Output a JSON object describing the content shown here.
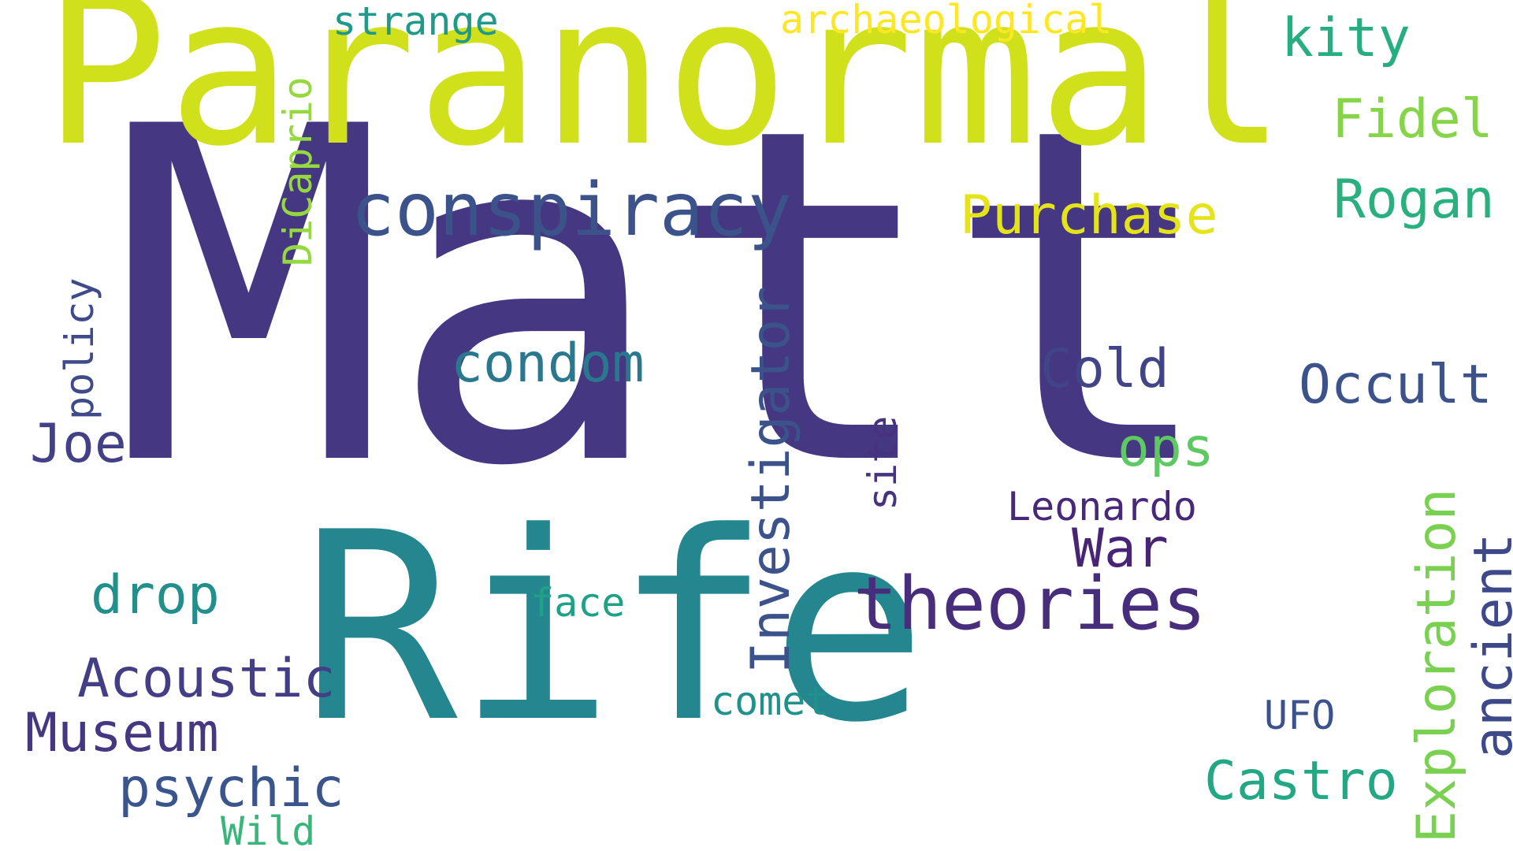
{
  "words": [
    {
      "text": "Matt",
      "color": "#453781"
    },
    {
      "text": "Paranormal",
      "color": "#d0e11c"
    },
    {
      "text": "Rife",
      "color": "#24868e"
    },
    {
      "text": "conspiracy",
      "color": "#3b528b"
    },
    {
      "text": "theories",
      "color": "#472d7b"
    },
    {
      "text": "Investigator",
      "color": "#3b528b"
    },
    {
      "text": "Exploration",
      "color": "#7ad151"
    },
    {
      "text": "Acoustic",
      "color": "#433e85"
    },
    {
      "text": "Museum",
      "color": "#453781"
    },
    {
      "text": "psychic",
      "color": "#39558c"
    },
    {
      "text": "Castro",
      "color": "#22a884"
    },
    {
      "text": "Occult",
      "color": "#3b528b"
    },
    {
      "text": "Purchase",
      "color": "#e5e419"
    },
    {
      "text": "Rogan",
      "color": "#2ab07f"
    },
    {
      "text": "condom",
      "color": "#2a788e"
    },
    {
      "text": "drop",
      "color": "#21908d"
    },
    {
      "text": "Cold",
      "color": "#414487"
    },
    {
      "text": "War",
      "color": "#482475"
    },
    {
      "text": "ancient",
      "color": "#3e4989"
    },
    {
      "text": "Fidel",
      "color": "#86d549"
    },
    {
      "text": "kity",
      "color": "#26ad81"
    },
    {
      "text": "Joe",
      "color": "#424086"
    },
    {
      "text": "ops",
      "color": "#5ec962"
    },
    {
      "text": "Leonardo",
      "color": "#482878"
    },
    {
      "text": "face",
      "color": "#1fa187"
    },
    {
      "text": "comet",
      "color": "#21918c"
    },
    {
      "text": "UFO",
      "color": "#3b528b"
    },
    {
      "text": "policy",
      "color": "#3e4a89"
    },
    {
      "text": "DiCaprio",
      "color": "#95d840"
    },
    {
      "text": "site",
      "color": "#46327e"
    },
    {
      "text": "strange",
      "color": "#1f9a8a"
    },
    {
      "text": "archaeological",
      "color": "#fde725"
    },
    {
      "text": "Wild",
      "color": "#35b779"
    }
  ]
}
